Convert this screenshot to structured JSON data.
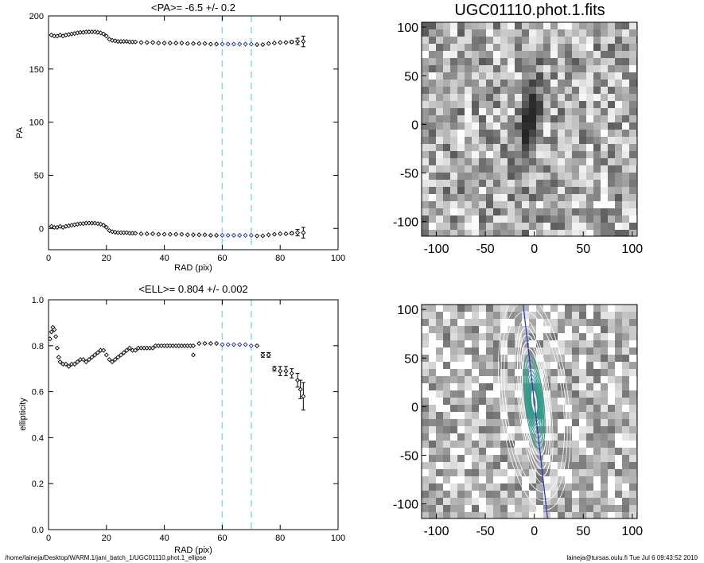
{
  "footer": {
    "path": "/home/laineja/Desktop/WARM.1/jani_batch_1/UGC01110.phot.1_ellipse",
    "user": "laineja@tursas.oulu.fi  Tue Jul  6 09:43:52 2010"
  },
  "chart_data": [
    {
      "type": "scatter",
      "title": "<PA>=  -6.5 +/-   0.2",
      "xlabel": "RAD (pix)",
      "ylabel": "PA",
      "xlim": [
        0,
        100
      ],
      "ylim": [
        -20,
        200
      ],
      "xticks": [
        "0",
        "20",
        "40",
        "60",
        "80",
        "100"
      ],
      "yticks": [
        "0",
        "50",
        "100",
        "150",
        "200"
      ],
      "vlines": [
        60,
        70
      ],
      "vline_color": "#7fe0d8",
      "highlight_range": [
        60,
        70
      ],
      "highlight_color": "#1a2aa8",
      "series": [
        {
          "x": [
            1,
            2,
            3,
            4,
            5,
            6,
            7,
            8,
            9,
            10,
            11,
            12,
            13,
            14,
            15,
            16,
            17,
            18,
            19,
            20,
            21,
            22,
            23,
            24,
            25,
            26,
            27,
            28,
            29,
            30,
            32,
            34,
            36,
            38,
            40,
            42,
            44,
            46,
            48,
            50,
            52,
            54,
            56,
            58,
            60,
            62,
            64,
            66,
            68,
            70,
            72,
            74,
            76,
            78,
            80,
            82,
            84,
            86,
            88
          ],
          "y": [
            2,
            1,
            1,
            2,
            1,
            2,
            2.5,
            3,
            3.5,
            4,
            4.5,
            4.5,
            5,
            5,
            5,
            5,
            4.5,
            4,
            3,
            1,
            -2,
            -3,
            -3.5,
            -4,
            -4,
            -4,
            -4,
            -4.5,
            -4.5,
            -4.5,
            -5,
            -5,
            -5,
            -5.5,
            -5.5,
            -5.5,
            -5.5,
            -5.5,
            -6,
            -6,
            -6,
            -6,
            -6.5,
            -6.5,
            -6.5,
            -6.5,
            -6.5,
            -6.5,
            -6.5,
            -6.5,
            -7,
            -7,
            -6,
            -5.5,
            -5,
            -5,
            -4.5,
            -4,
            -4
          ],
          "err": [
            0,
            0,
            0,
            0,
            0,
            0,
            0,
            0,
            0,
            0,
            0,
            0,
            0,
            0,
            0,
            0,
            0,
            0,
            0,
            0,
            0,
            0,
            0,
            0,
            0,
            0,
            0,
            0,
            0,
            0,
            0,
            0,
            0,
            0,
            0,
            0,
            0,
            0,
            0,
            0,
            0,
            0,
            0,
            0,
            0,
            0,
            0,
            0,
            0,
            0,
            0,
            0,
            0,
            0,
            0,
            0,
            1,
            3,
            5
          ]
        },
        {
          "x": [
            1,
            2,
            3,
            4,
            5,
            6,
            7,
            8,
            9,
            10,
            11,
            12,
            13,
            14,
            15,
            16,
            17,
            18,
            19,
            20,
            21,
            22,
            23,
            24,
            25,
            26,
            27,
            28,
            29,
            30,
            32,
            34,
            36,
            38,
            40,
            42,
            44,
            46,
            48,
            50,
            52,
            54,
            56,
            58,
            60,
            62,
            64,
            66,
            68,
            70,
            72,
            74,
            76,
            78,
            80,
            82,
            84,
            86,
            88
          ],
          "y": [
            182,
            181,
            181,
            182,
            181,
            182,
            182.5,
            183,
            183.5,
            184,
            184.5,
            184.5,
            185,
            185,
            185,
            185,
            184.5,
            184,
            183,
            181,
            178,
            177,
            176.5,
            176,
            176,
            176,
            176,
            175.5,
            175.5,
            175.5,
            175,
            175,
            175,
            174.5,
            174.5,
            174.5,
            174.5,
            174.5,
            174,
            174,
            174,
            174,
            173.5,
            173.5,
            173.5,
            173.5,
            173.5,
            173.5,
            173.5,
            173.5,
            173,
            173,
            174,
            174.5,
            175,
            175,
            175.5,
            176,
            176
          ],
          "err": [
            0,
            0,
            0,
            0,
            0,
            0,
            0,
            0,
            0,
            0,
            0,
            0,
            0,
            0,
            0,
            0,
            0,
            0,
            0,
            0,
            0,
            0,
            0,
            0,
            0,
            0,
            0,
            0,
            0,
            0,
            0,
            0,
            0,
            0,
            0,
            0,
            0,
            0,
            0,
            0,
            0,
            0,
            0,
            0,
            0,
            0,
            0,
            0,
            0,
            0,
            0,
            0,
            0,
            0,
            0,
            0,
            1,
            3,
            5
          ]
        }
      ]
    },
    {
      "type": "heatmap",
      "title": "UGC01110.phot.1.fits",
      "xlim": [
        -115,
        105
      ],
      "ylim": [
        -115,
        105
      ],
      "xticks": [
        "-100",
        "-50",
        "0",
        "50",
        "100"
      ],
      "yticks": [
        "-100",
        "-50",
        "0",
        "50",
        "100"
      ],
      "colormap": "inverted-grayscale",
      "source": {
        "center": [
          -5,
          0
        ],
        "semi_major": 60,
        "semi_minor": 12,
        "pa_deg": -6.5
      }
    },
    {
      "type": "scatter",
      "title": "<ELL>= 0.804 +/-  0.002",
      "xlabel": "RAD (pix)",
      "ylabel": "ellipticity",
      "xlim": [
        0,
        100
      ],
      "ylim": [
        0,
        1
      ],
      "xticks": [
        "0",
        "20",
        "40",
        "60",
        "80",
        "100"
      ],
      "yticks": [
        "0.0",
        "0.2",
        "0.4",
        "0.6",
        "0.8",
        "1.0"
      ],
      "vlines": [
        60,
        70
      ],
      "vline_color": "#7fe0d8",
      "highlight_range": [
        60,
        70
      ],
      "highlight_color": "#1a2aa8",
      "series": [
        {
          "x": [
            0.5,
            1,
            1.5,
            2,
            2.5,
            3,
            3.5,
            4,
            5,
            6,
            7,
            8,
            9,
            10,
            11,
            12,
            13,
            14,
            15,
            16,
            17,
            18,
            19,
            20,
            21,
            22,
            23,
            24,
            25,
            26,
            27,
            28,
            29,
            30,
            31,
            32,
            33,
            34,
            35,
            36,
            37,
            38,
            39,
            40,
            41,
            42,
            43,
            44,
            45,
            46,
            47,
            48,
            49,
            50,
            52,
            54,
            56,
            58,
            60,
            62,
            64,
            66,
            68,
            70,
            72,
            74,
            76,
            78,
            80,
            82,
            84,
            86,
            87,
            88
          ],
          "y": [
            0.83,
            0.86,
            0.88,
            0.87,
            0.84,
            0.79,
            0.75,
            0.73,
            0.72,
            0.72,
            0.71,
            0.72,
            0.72,
            0.73,
            0.74,
            0.74,
            0.73,
            0.74,
            0.75,
            0.76,
            0.77,
            0.78,
            0.78,
            0.76,
            0.74,
            0.73,
            0.74,
            0.75,
            0.76,
            0.77,
            0.78,
            0.79,
            0.78,
            0.78,
            0.79,
            0.79,
            0.79,
            0.79,
            0.79,
            0.79,
            0.8,
            0.8,
            0.8,
            0.8,
            0.8,
            0.8,
            0.8,
            0.8,
            0.8,
            0.8,
            0.8,
            0.8,
            0.8,
            0.8,
            0.81,
            0.81,
            0.81,
            0.81,
            0.805,
            0.805,
            0.805,
            0.805,
            0.805,
            0.8,
            0.8,
            0.76,
            0.76,
            0.7,
            0.69,
            0.69,
            0.68,
            0.65,
            0.61,
            0.58
          ],
          "err": [
            0,
            0,
            0,
            0,
            0,
            0,
            0,
            0,
            0,
            0,
            0,
            0,
            0,
            0,
            0,
            0,
            0,
            0,
            0,
            0,
            0,
            0,
            0,
            0,
            0,
            0,
            0,
            0,
            0,
            0,
            0,
            0,
            0,
            0,
            0,
            0,
            0,
            0,
            0,
            0,
            0,
            0,
            0,
            0,
            0,
            0,
            0,
            0,
            0,
            0,
            0,
            0,
            0,
            0,
            0,
            0,
            0,
            0,
            0,
            0,
            0,
            0,
            0,
            0,
            0,
            0.01,
            0.01,
            0.01,
            0.02,
            0.02,
            0.02,
            0.03,
            0.04,
            0.06
          ]
        },
        {
          "x": [
            50
          ],
          "y": [
            0.76
          ],
          "err": [
            0
          ]
        }
      ]
    },
    {
      "type": "heatmap",
      "title": "",
      "xlim": [
        -115,
        105
      ],
      "ylim": [
        -115,
        105
      ],
      "xticks": [
        "-100",
        "-50",
        "0",
        "50",
        "100"
      ],
      "yticks": [
        "-100",
        "-50",
        "0",
        "50",
        "100"
      ],
      "colormap": "grayscale-with-isophotes",
      "pa_line_color": "#2233bb",
      "isophote_color": "#ffffff",
      "inner_isophote_color": "#2d9a8a",
      "ellipses": {
        "center": [
          0,
          5
        ],
        "max_semi_major": 100,
        "ellipticity": 0.804,
        "pa_deg": -6.5
      }
    }
  ]
}
